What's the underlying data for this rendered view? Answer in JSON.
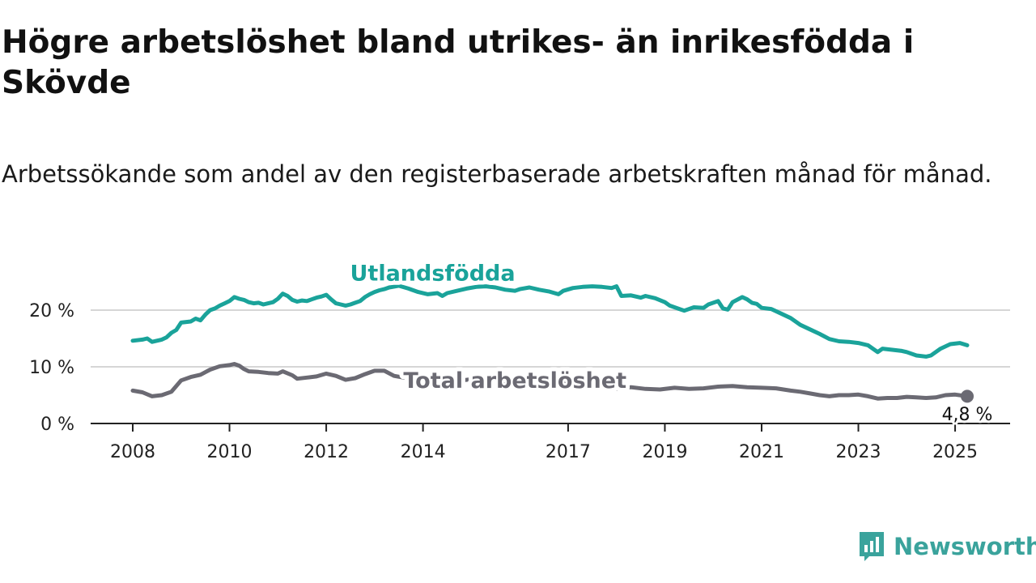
{
  "title": "Högre arbetslöshet bland utrikes- än inrikesfödda i Skövde",
  "subtitle": "Arbetssökande som andel av den registerbaserade arbetskraften månad för månad.",
  "brand": {
    "name": "Newsworthy",
    "color": "#3aa39c",
    "icon": "bar-chart-speech-bubble-icon"
  },
  "chart_data": {
    "type": "line",
    "x_unit": "year (fractional)",
    "xlim": [
      2008,
      2025.3
    ],
    "ylim": [
      0,
      25
    ],
    "grid": true,
    "y_ticks": [
      {
        "value": 0,
        "label": "0 %"
      },
      {
        "value": 10,
        "label": "10 %"
      },
      {
        "value": 20,
        "label": "20 %"
      }
    ],
    "x_ticks": [
      {
        "value": 2008,
        "label": "2008"
      },
      {
        "value": 2010,
        "label": "2010"
      },
      {
        "value": 2012,
        "label": "2012"
      },
      {
        "value": 2014,
        "label": "2014"
      },
      {
        "value": 2017,
        "label": "2017"
      },
      {
        "value": 2019,
        "label": "2019"
      },
      {
        "value": 2021,
        "label": "2021"
      },
      {
        "value": 2023,
        "label": "2023"
      },
      {
        "value": 2025,
        "label": "2025"
      }
    ],
    "series": [
      {
        "name": "Utlandsfödda",
        "color": "#1aa39a",
        "label_anchor": {
          "x": 2014.2,
          "y": 25.2
        },
        "points": [
          [
            2008.0,
            14.6
          ],
          [
            2008.2,
            14.8
          ],
          [
            2008.3,
            15.0
          ],
          [
            2008.4,
            14.4
          ],
          [
            2008.6,
            14.8
          ],
          [
            2008.7,
            15.2
          ],
          [
            2008.8,
            16.0
          ],
          [
            2008.9,
            16.5
          ],
          [
            2009.0,
            17.8
          ],
          [
            2009.2,
            18.0
          ],
          [
            2009.3,
            18.5
          ],
          [
            2009.4,
            18.2
          ],
          [
            2009.5,
            19.2
          ],
          [
            2009.6,
            20.0
          ],
          [
            2009.7,
            20.3
          ],
          [
            2009.8,
            20.8
          ],
          [
            2009.9,
            21.2
          ],
          [
            2010.0,
            21.6
          ],
          [
            2010.1,
            22.3
          ],
          [
            2010.2,
            22.0
          ],
          [
            2010.3,
            21.8
          ],
          [
            2010.4,
            21.4
          ],
          [
            2010.5,
            21.2
          ],
          [
            2010.6,
            21.3
          ],
          [
            2010.7,
            21.0
          ],
          [
            2010.8,
            21.2
          ],
          [
            2010.9,
            21.4
          ],
          [
            2011.0,
            22.0
          ],
          [
            2011.1,
            22.9
          ],
          [
            2011.2,
            22.5
          ],
          [
            2011.3,
            21.8
          ],
          [
            2011.4,
            21.5
          ],
          [
            2011.5,
            21.7
          ],
          [
            2011.6,
            21.6
          ],
          [
            2011.7,
            21.9
          ],
          [
            2011.8,
            22.2
          ],
          [
            2011.9,
            22.4
          ],
          [
            2012.0,
            22.7
          ],
          [
            2012.1,
            21.9
          ],
          [
            2012.2,
            21.2
          ],
          [
            2012.3,
            21.0
          ],
          [
            2012.4,
            20.8
          ],
          [
            2012.5,
            21.0
          ],
          [
            2012.6,
            21.3
          ],
          [
            2012.7,
            21.6
          ],
          [
            2012.8,
            22.3
          ],
          [
            2012.9,
            22.8
          ],
          [
            2013.0,
            23.2
          ],
          [
            2013.1,
            23.5
          ],
          [
            2013.2,
            23.7
          ],
          [
            2013.3,
            24.0
          ],
          [
            2013.5,
            24.3
          ],
          [
            2013.7,
            23.8
          ],
          [
            2013.9,
            23.2
          ],
          [
            2014.1,
            22.8
          ],
          [
            2014.3,
            23.0
          ],
          [
            2014.4,
            22.5
          ],
          [
            2014.5,
            23.0
          ],
          [
            2014.7,
            23.4
          ],
          [
            2014.9,
            23.8
          ],
          [
            2015.1,
            24.1
          ],
          [
            2015.3,
            24.2
          ],
          [
            2015.5,
            24.0
          ],
          [
            2015.7,
            23.6
          ],
          [
            2015.9,
            23.4
          ],
          [
            2016.0,
            23.7
          ],
          [
            2016.2,
            24.0
          ],
          [
            2016.4,
            23.6
          ],
          [
            2016.6,
            23.3
          ],
          [
            2016.8,
            22.8
          ],
          [
            2016.9,
            23.4
          ],
          [
            2017.1,
            23.9
          ],
          [
            2017.3,
            24.1
          ],
          [
            2017.5,
            24.2
          ],
          [
            2017.7,
            24.1
          ],
          [
            2017.9,
            23.9
          ],
          [
            2018.0,
            24.2
          ],
          [
            2018.1,
            22.5
          ],
          [
            2018.3,
            22.6
          ],
          [
            2018.5,
            22.2
          ],
          [
            2018.6,
            22.5
          ],
          [
            2018.8,
            22.1
          ],
          [
            2019.0,
            21.4
          ],
          [
            2019.1,
            20.8
          ],
          [
            2019.3,
            20.2
          ],
          [
            2019.4,
            19.9
          ],
          [
            2019.6,
            20.5
          ],
          [
            2019.8,
            20.4
          ],
          [
            2019.9,
            21.0
          ],
          [
            2020.1,
            21.6
          ],
          [
            2020.2,
            20.3
          ],
          [
            2020.3,
            20.1
          ],
          [
            2020.4,
            21.4
          ],
          [
            2020.6,
            22.3
          ],
          [
            2020.7,
            21.9
          ],
          [
            2020.8,
            21.3
          ],
          [
            2020.9,
            21.1
          ],
          [
            2021.0,
            20.4
          ],
          [
            2021.2,
            20.2
          ],
          [
            2021.4,
            19.4
          ],
          [
            2021.6,
            18.6
          ],
          [
            2021.8,
            17.4
          ],
          [
            2022.0,
            16.6
          ],
          [
            2022.2,
            15.8
          ],
          [
            2022.4,
            14.9
          ],
          [
            2022.6,
            14.5
          ],
          [
            2022.8,
            14.4
          ],
          [
            2023.0,
            14.2
          ],
          [
            2023.2,
            13.8
          ],
          [
            2023.4,
            12.6
          ],
          [
            2023.5,
            13.2
          ],
          [
            2023.7,
            13.0
          ],
          [
            2023.9,
            12.8
          ],
          [
            2024.0,
            12.6
          ],
          [
            2024.2,
            12.0
          ],
          [
            2024.4,
            11.8
          ],
          [
            2024.5,
            12.0
          ],
          [
            2024.7,
            13.2
          ],
          [
            2024.9,
            14.0
          ],
          [
            2025.1,
            14.2
          ],
          [
            2025.25,
            13.8
          ]
        ]
      },
      {
        "name": "Total arbetslöshet",
        "color": "#6b6a73",
        "label_anchor": {
          "x": 2015.9,
          "y": 6.3
        },
        "points": [
          [
            2008.0,
            5.8
          ],
          [
            2008.2,
            5.5
          ],
          [
            2008.4,
            4.8
          ],
          [
            2008.6,
            5.0
          ],
          [
            2008.8,
            5.6
          ],
          [
            2009.0,
            7.6
          ],
          [
            2009.2,
            8.2
          ],
          [
            2009.4,
            8.6
          ],
          [
            2009.6,
            9.5
          ],
          [
            2009.8,
            10.1
          ],
          [
            2010.0,
            10.3
          ],
          [
            2010.1,
            10.5
          ],
          [
            2010.2,
            10.2
          ],
          [
            2010.3,
            9.6
          ],
          [
            2010.4,
            9.2
          ],
          [
            2010.6,
            9.1
          ],
          [
            2010.8,
            8.9
          ],
          [
            2011.0,
            8.8
          ],
          [
            2011.1,
            9.2
          ],
          [
            2011.3,
            8.5
          ],
          [
            2011.4,
            7.9
          ],
          [
            2011.6,
            8.1
          ],
          [
            2011.8,
            8.3
          ],
          [
            2012.0,
            8.8
          ],
          [
            2012.2,
            8.4
          ],
          [
            2012.4,
            7.7
          ],
          [
            2012.6,
            8.0
          ],
          [
            2012.8,
            8.7
          ],
          [
            2013.0,
            9.3
          ],
          [
            2013.2,
            9.3
          ],
          [
            2013.4,
            8.4
          ],
          [
            2013.6,
            8.1
          ],
          [
            2013.8,
            8.4
          ],
          [
            2014.0,
            8.5
          ],
          [
            2014.2,
            8.1
          ],
          [
            2014.4,
            7.4
          ],
          [
            2014.6,
            7.3
          ],
          [
            2014.8,
            7.6
          ],
          [
            2015.0,
            7.8
          ],
          [
            2015.2,
            7.9
          ],
          [
            2015.3,
            7.2
          ],
          [
            2015.5,
            6.7
          ],
          [
            2015.7,
            6.9
          ],
          [
            2015.9,
            7.1
          ],
          [
            2016.1,
            7.4
          ],
          [
            2016.3,
            7.0
          ],
          [
            2016.5,
            6.4
          ],
          [
            2016.7,
            6.8
          ],
          [
            2016.9,
            7.0
          ],
          [
            2017.0,
            6.9
          ],
          [
            2017.2,
            6.6
          ],
          [
            2017.4,
            6.7
          ],
          [
            2017.6,
            6.4
          ],
          [
            2017.8,
            6.2
          ],
          [
            2018.0,
            6.1
          ],
          [
            2018.3,
            6.4
          ],
          [
            2018.6,
            6.1
          ],
          [
            2018.9,
            6.0
          ],
          [
            2019.2,
            6.3
          ],
          [
            2019.5,
            6.1
          ],
          [
            2019.8,
            6.2
          ],
          [
            2020.1,
            6.5
          ],
          [
            2020.4,
            6.6
          ],
          [
            2020.7,
            6.4
          ],
          [
            2021.0,
            6.3
          ],
          [
            2021.3,
            6.2
          ],
          [
            2021.6,
            5.8
          ],
          [
            2021.8,
            5.6
          ],
          [
            2022.0,
            5.3
          ],
          [
            2022.2,
            5.0
          ],
          [
            2022.4,
            4.8
          ],
          [
            2022.6,
            5.0
          ],
          [
            2022.8,
            5.0
          ],
          [
            2023.0,
            5.1
          ],
          [
            2023.2,
            4.8
          ],
          [
            2023.4,
            4.4
          ],
          [
            2023.6,
            4.5
          ],
          [
            2023.8,
            4.5
          ],
          [
            2024.0,
            4.7
          ],
          [
            2024.2,
            4.6
          ],
          [
            2024.4,
            4.5
          ],
          [
            2024.6,
            4.6
          ],
          [
            2024.8,
            5.0
          ],
          [
            2025.0,
            5.1
          ],
          [
            2025.25,
            4.8
          ]
        ],
        "end_value_label": "4,8 %"
      }
    ]
  }
}
